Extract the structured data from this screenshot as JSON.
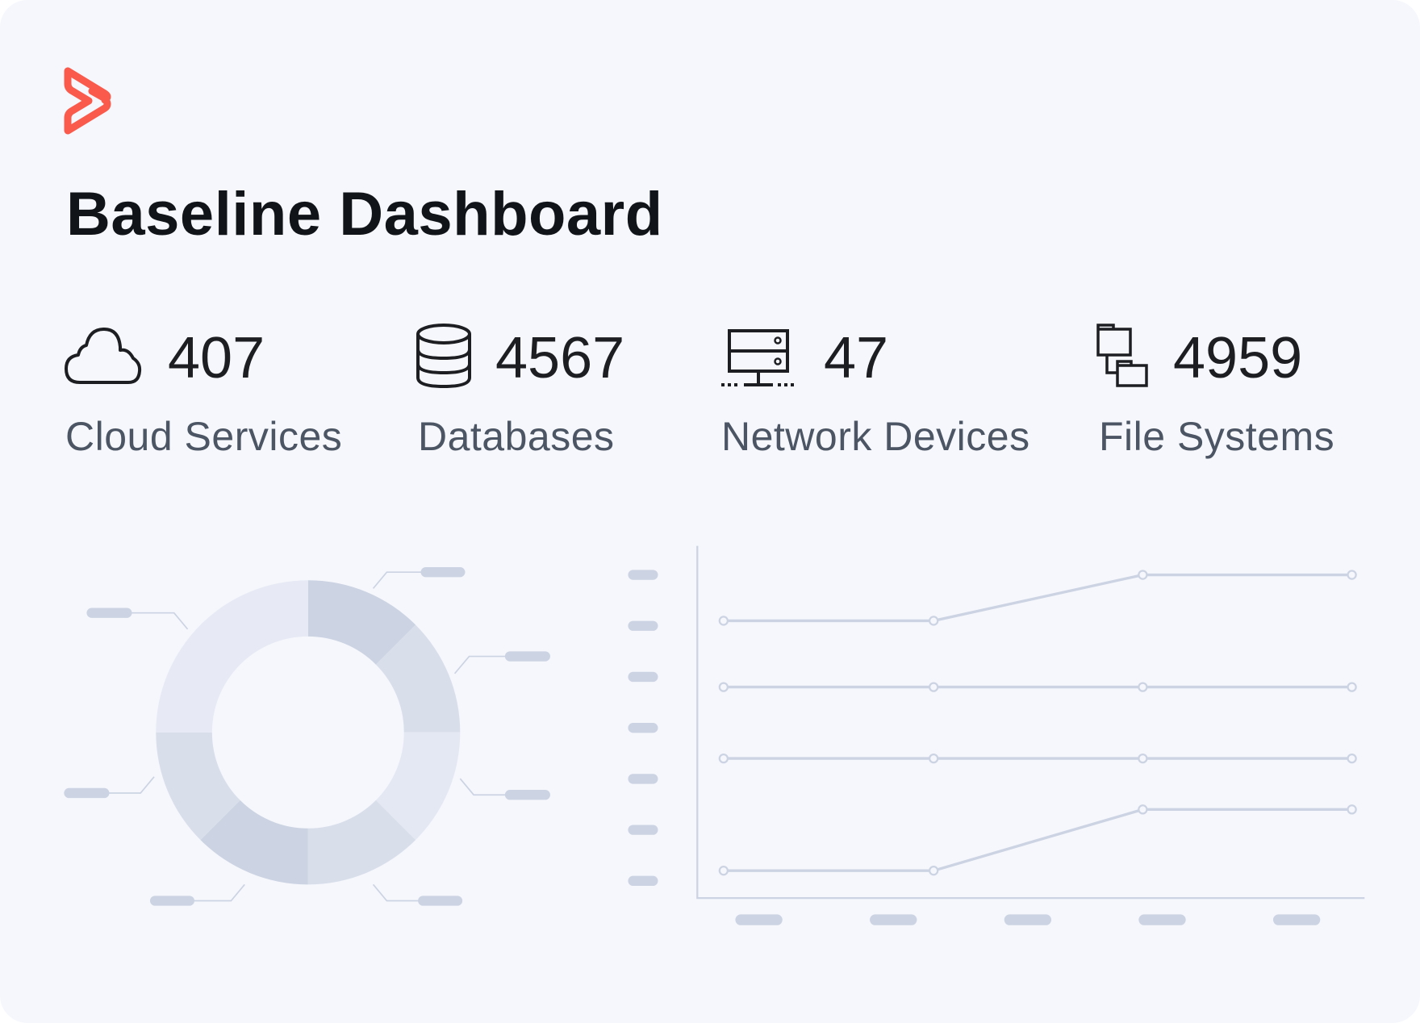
{
  "brand": {
    "logo_icon": "brand-chevron-logo",
    "accent": "#fa5a4b"
  },
  "header": {
    "title": "Baseline Dashboard"
  },
  "stats": [
    {
      "icon": "cloud-icon",
      "value": "407",
      "label": "Cloud Services"
    },
    {
      "icon": "database-icon",
      "value": "4567",
      "label": "Databases"
    },
    {
      "icon": "network-server-icon",
      "value": "47",
      "label": "Network Devices"
    },
    {
      "icon": "folders-icon",
      "value": "4959",
      "label": "File Systems"
    }
  ],
  "colors": {
    "background": "#f5f7fc",
    "chart_gray": "#ccd3e2",
    "text": "#1c1e22",
    "label": "#4c5563"
  },
  "chart_data": [
    {
      "type": "pie",
      "title": "",
      "donut": true,
      "slices": [
        {
          "value": 12.5,
          "color": "#ccd3e2"
        },
        {
          "value": 12.5,
          "color": "#d9deeb"
        },
        {
          "value": 12.5,
          "color": "#e4e8f2"
        },
        {
          "value": 12.5,
          "color": "#d9deeb"
        },
        {
          "value": 12.5,
          "color": "#ccd3e2"
        },
        {
          "value": 12.5,
          "color": "#d9deeb"
        },
        {
          "value": 25,
          "color": "#e7eaf4"
        }
      ],
      "labels": "placeholder pills (no text)"
    },
    {
      "type": "line",
      "title": "",
      "x": [
        1,
        2,
        3,
        4
      ],
      "ylim": [
        1,
        7
      ],
      "y_tick_count": 7,
      "x_tick_count": 5,
      "grid": false,
      "series": [
        {
          "name": "",
          "values": [
            6.1,
            6.1,
            7.0,
            7.0
          ]
        },
        {
          "name": "",
          "values": [
            4.8,
            4.8,
            4.8,
            4.8
          ]
        },
        {
          "name": "",
          "values": [
            3.4,
            3.4,
            3.4,
            3.4
          ]
        },
        {
          "name": "",
          "values": [
            1.2,
            1.2,
            2.4,
            2.4
          ]
        }
      ]
    }
  ]
}
